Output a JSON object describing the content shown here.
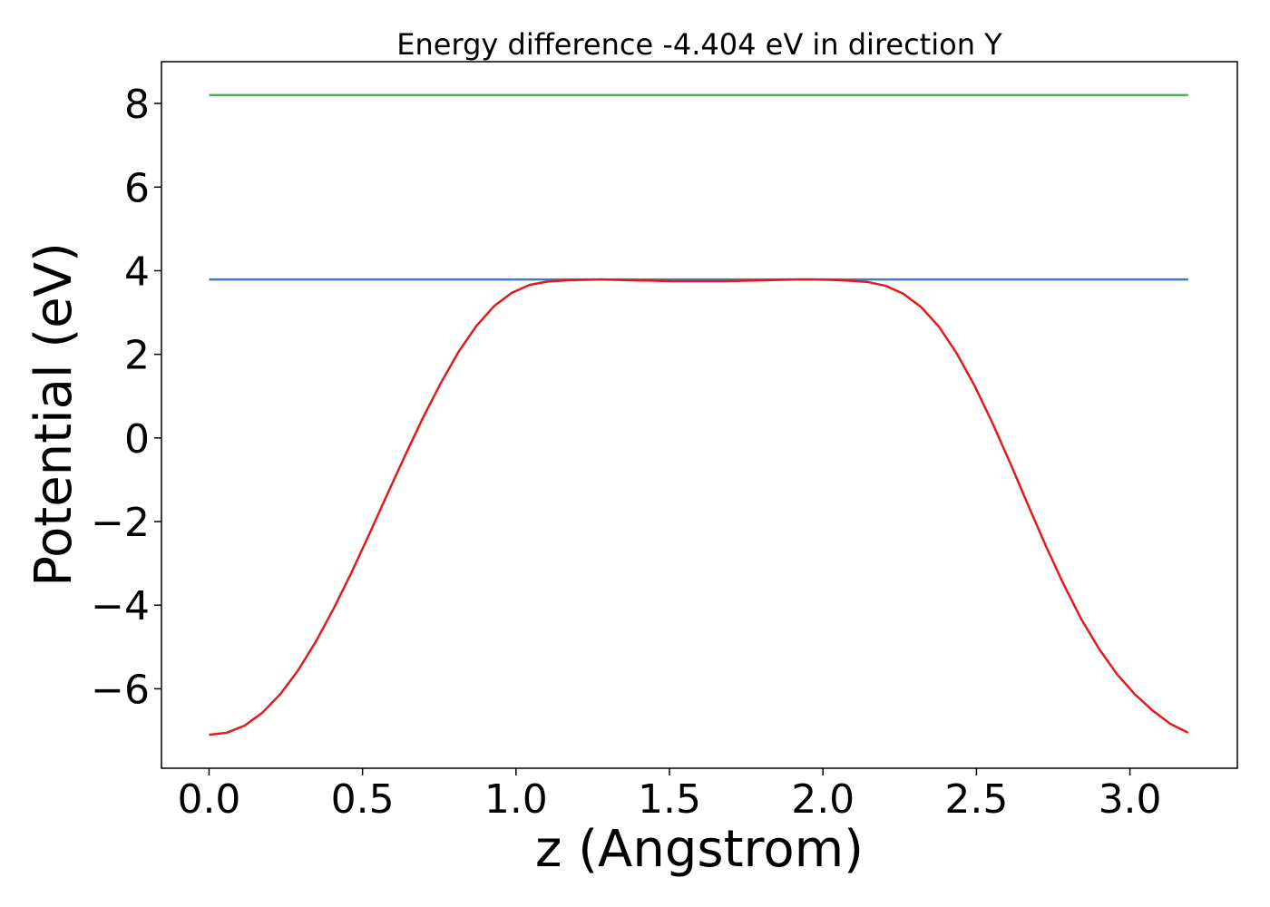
{
  "chart_data": {
    "type": "line",
    "title": "Energy difference -4.404 eV in direction Y",
    "xlabel": "z (Angstrom)",
    "ylabel": "Potential (eV)",
    "xlim": [
      -0.155,
      3.35
    ],
    "ylim": [
      -7.9,
      9.0
    ],
    "xticks": [
      0.0,
      0.5,
      1.0,
      1.5,
      2.0,
      2.5,
      3.0
    ],
    "xtick_labels": [
      "0.0",
      "0.5",
      "1.0",
      "1.5",
      "2.0",
      "2.5",
      "3.0"
    ],
    "yticks": [
      -6,
      -4,
      -2,
      0,
      2,
      4,
      6,
      8
    ],
    "ytick_labels": [
      "−6",
      "−4",
      "−2",
      "0",
      "2",
      "4",
      "6",
      "8"
    ],
    "grid": false,
    "series": [
      {
        "color": "#4caf50",
        "x": [
          0.0,
          3.19
        ],
        "y": [
          8.2,
          8.2
        ]
      },
      {
        "color": "#3a7fc1",
        "x": [
          0.0,
          3.19
        ],
        "y": [
          3.79,
          3.79
        ]
      },
      {
        "color": "#e31a1c",
        "x": [
          0.0,
          0.058,
          0.116,
          0.174,
          0.232,
          0.29,
          0.348,
          0.406,
          0.464,
          0.522,
          0.58,
          0.638,
          0.696,
          0.754,
          0.812,
          0.87,
          0.928,
          0.986,
          1.044,
          1.102,
          1.16,
          1.218,
          1.276,
          1.334,
          1.392,
          1.45,
          1.508,
          1.566,
          1.624,
          1.682,
          1.74,
          1.798,
          1.856,
          1.914,
          1.972,
          2.03,
          2.088,
          2.146,
          2.204,
          2.262,
          2.32,
          2.378,
          2.436,
          2.494,
          2.552,
          2.61,
          2.668,
          2.726,
          2.784,
          2.842,
          2.9,
          2.958,
          3.016,
          3.074,
          3.132,
          3.19
        ],
        "y": [
          -7.1,
          -7.05,
          -6.88,
          -6.57,
          -6.13,
          -5.56,
          -4.87,
          -4.08,
          -3.22,
          -2.3,
          -1.36,
          -0.43,
          0.47,
          1.3,
          2.05,
          2.67,
          3.15,
          3.47,
          3.66,
          3.74,
          3.77,
          3.78,
          3.79,
          3.78,
          3.77,
          3.76,
          3.75,
          3.75,
          3.75,
          3.75,
          3.76,
          3.77,
          3.78,
          3.79,
          3.79,
          3.78,
          3.76,
          3.73,
          3.64,
          3.45,
          3.13,
          2.66,
          2.02,
          1.25,
          0.36,
          -0.6,
          -1.6,
          -2.58,
          -3.5,
          -4.34,
          -5.05,
          -5.65,
          -6.13,
          -6.52,
          -6.84,
          -7.05
        ]
      }
    ]
  }
}
